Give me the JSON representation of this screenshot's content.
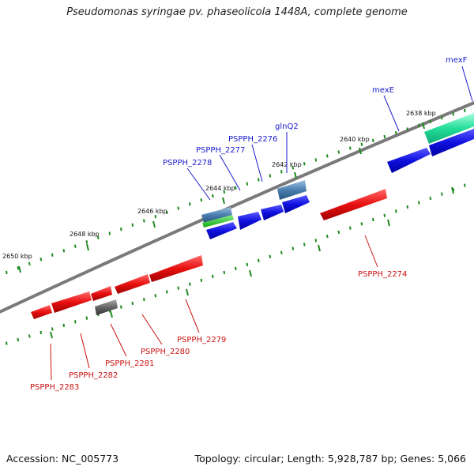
{
  "title": "Pseudomonas syringae pv. phaseolicola 1448A, complete genome",
  "footer": {
    "accession": "Accession: NC_005773",
    "summary": "Topology: circular; Length: 5,928,787 bp; Genes: 5,066"
  },
  "colors": {
    "backbone": "#7a7a7a",
    "tick": "#1f8a1f",
    "forward_gene": "#1010e0",
    "reverse_gene": "#e01010",
    "forward_label": "#1a1acc",
    "reverse_label": "#cc1111",
    "steel_gene": "#4a7fb0",
    "green_gene": "#22bb22",
    "teal_gene": "#22dd99",
    "gray_gene": "#666666"
  },
  "ticks": [
    {
      "label": "2650 kbp"
    },
    {
      "label": "2648 kbp"
    },
    {
      "label": "2646 kbp"
    },
    {
      "label": "2644 kbp"
    },
    {
      "label": "2642 kbp"
    },
    {
      "label": "2640 kbp"
    },
    {
      "label": "2638 kbp"
    }
  ],
  "genes": [
    {
      "name": "mexF",
      "strand": "+"
    },
    {
      "name": "mexE",
      "strand": "+"
    },
    {
      "name": "glnQ2",
      "strand": "+"
    },
    {
      "name": "PSPPH_2276",
      "strand": "+"
    },
    {
      "name": "PSPPH_2277",
      "strand": "+"
    },
    {
      "name": "PSPPH_2278",
      "strand": "+"
    },
    {
      "name": "PSPPH_2274",
      "strand": "-"
    },
    {
      "name": "PSPPH_2279",
      "strand": "-"
    },
    {
      "name": "PSPPH_2280",
      "strand": "-"
    },
    {
      "name": "PSPPH_2281",
      "strand": "-"
    },
    {
      "name": "PSPPH_2282",
      "strand": "-"
    },
    {
      "name": "PSPPH_2283",
      "strand": "-"
    }
  ]
}
